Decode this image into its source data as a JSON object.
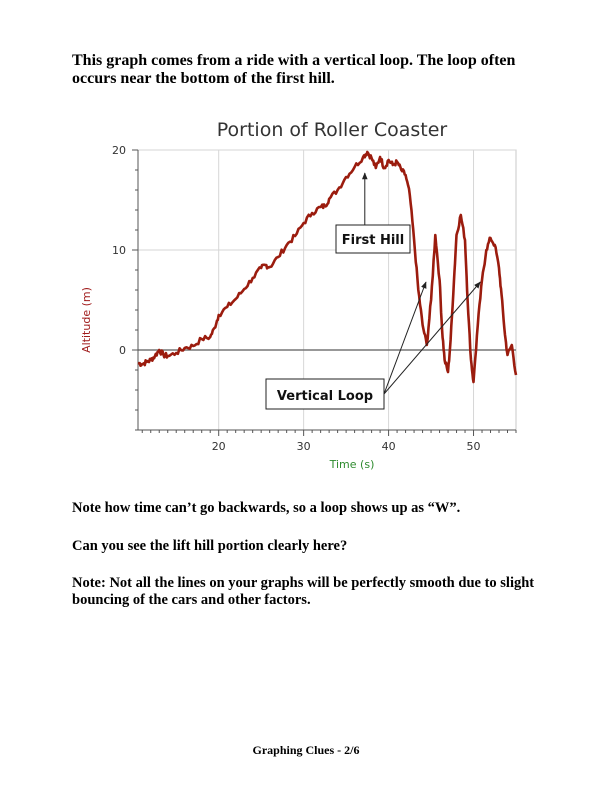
{
  "intro_text": "This graph comes from a ride with a vertical loop. The loop often occurs near the bottom of the first hill.",
  "chart_data": {
    "type": "line",
    "title": "Portion of Roller Coaster",
    "xlabel": "Time (s)",
    "ylabel": "Altitude (m)",
    "xlim": [
      10.5,
      55
    ],
    "ylim": [
      -8,
      20
    ],
    "x_ticks": [
      20,
      30,
      40,
      50
    ],
    "y_ticks": [
      0,
      10,
      20
    ],
    "grid": true,
    "series": [
      {
        "name": "Altitude",
        "color": "#9b1c0e",
        "x": [
          10.5,
          11,
          11.5,
          12,
          12.5,
          13,
          13.5,
          14,
          15,
          16,
          17,
          18,
          19,
          19.5,
          20,
          21,
          22,
          23,
          24,
          25,
          25.5,
          26,
          27,
          28,
          29,
          30,
          31,
          32,
          32.5,
          33,
          34,
          35,
          36,
          37,
          37.5,
          38,
          38.5,
          39,
          39.5,
          40,
          40.5,
          41,
          41.5,
          42,
          42.5,
          43,
          43.5,
          44,
          44.5,
          45,
          45.5,
          46,
          46.3,
          46.6,
          47,
          47.3,
          47.7,
          48,
          48.5,
          49,
          49.3,
          49.7,
          50,
          50.5,
          51,
          51.5,
          52,
          52.5,
          53,
          53.3,
          53.7,
          54,
          54.5,
          55
        ],
        "values": [
          -1.3,
          -1.4,
          -1.2,
          -1.0,
          -0.6,
          0.0,
          -0.5,
          -0.6,
          -0.3,
          0.2,
          0.4,
          1.1,
          1.3,
          2.2,
          3.5,
          4.3,
          5.1,
          6.1,
          7.2,
          8.2,
          8.5,
          8.3,
          9.3,
          10.5,
          11.4,
          12.7,
          13.7,
          14.3,
          14.4,
          15.1,
          16.0,
          17.3,
          18.3,
          19.3,
          19.8,
          19.2,
          18.2,
          19.3,
          18.2,
          19.0,
          18.5,
          18.8,
          18.0,
          17.5,
          15.5,
          11.0,
          6.0,
          2.5,
          0.5,
          5.0,
          11.5,
          7.0,
          2.0,
          -1.0,
          -2.2,
          1.0,
          7.0,
          11.5,
          13.5,
          11.0,
          5.0,
          -1.0,
          -3.2,
          2.5,
          7.0,
          10.0,
          11.2,
          10.5,
          8.2,
          5.5,
          1.5,
          -0.5,
          0.5,
          -2.5
        ]
      }
    ],
    "annotations": [
      {
        "label": "First Hill",
        "points_to": {
          "x": 37.2,
          "y": 18.3
        }
      },
      {
        "label": "Vertical Loop",
        "points_to": [
          {
            "x": 44.4,
            "y": 6.8
          },
          {
            "x": 50.8,
            "y": 6.8
          }
        ]
      }
    ]
  },
  "notes": [
    "Note how time can’t go backwards, so a loop shows up as “W”.",
    "Can you see the lift hill portion clearly here?",
    "Note: Not all the lines on your graphs will be perfectly smooth due to slight bouncing of the cars and other factors."
  ],
  "footer": "Graphing Clues - 2/6"
}
